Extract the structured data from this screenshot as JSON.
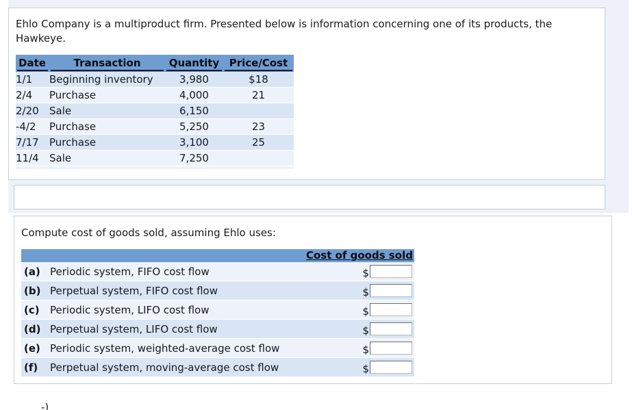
{
  "intro": {
    "line1": "Ehlo Company is a multiproduct firm. Presented below is information concerning one of its products, the",
    "line2": "Hawkeye."
  },
  "inventory_table": {
    "headers": {
      "date": "Date",
      "transaction": "Transaction",
      "quantity": "Quantity",
      "price": "Price/Cost"
    },
    "rows": [
      {
        "date": "1/1",
        "transaction": "Beginning inventory",
        "quantity": "3,980",
        "price": "$18"
      },
      {
        "date": "2/4",
        "transaction": "Purchase",
        "quantity": "4,000",
        "price": "21"
      },
      {
        "date": "2/20",
        "transaction": "Sale",
        "quantity": "6,150",
        "price": ""
      },
      {
        "date": "-4/2",
        "transaction": "Purchase",
        "quantity": "5,250",
        "price": "23"
      },
      {
        "date": "7/17",
        "transaction": "Purchase",
        "quantity": "3,100",
        "price": "25"
      },
      {
        "date": "11/4",
        "transaction": "Sale",
        "quantity": "7,250",
        "price": ""
      }
    ]
  },
  "compute": {
    "prompt": "Compute cost of goods sold, assuming Ehlo uses:",
    "column_header": "Cost of goods sold",
    "currency_symbol": "$",
    "rows": [
      {
        "label": "(a)",
        "description": "Periodic system, FIFO cost flow",
        "value": ""
      },
      {
        "label": "(b)",
        "description": "Perpetual system, FIFO cost flow",
        "value": ""
      },
      {
        "label": "(c)",
        "description": "Periodic system, LIFO cost flow",
        "value": ""
      },
      {
        "label": "(d)",
        "description": "Perpetual system, LIFO cost flow",
        "value": ""
      },
      {
        "label": "(e)",
        "description": "Periodic system, weighted-average cost flow",
        "value": ""
      },
      {
        "label": "(f)",
        "description": "Perpetual system, moving-average cost flow",
        "value": ""
      }
    ]
  },
  "fragment_text": "-)",
  "colors": {
    "header_blue": "#6f9dd1",
    "row_blue": "#d9e5f4",
    "row_light": "#eef3fb",
    "panel_border": "#c8d0da",
    "page_tint": "#eef2f8",
    "input_border_dark": "#6d6d6d"
  }
}
